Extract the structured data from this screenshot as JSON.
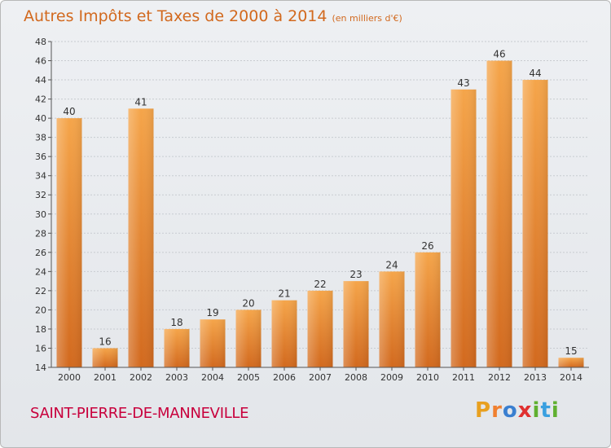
{
  "title": "Autres Impôts et Taxes de 2000 à 2014",
  "unit": "(en milliers d'€)",
  "commune": "SAINT-PIERRE-DE-MANNEVILLE",
  "logo": "Proxiti",
  "colors": {
    "bar_top": "#f5a54a",
    "bar_bottom": "#d2691e",
    "title": "#d2691e",
    "commune": "#c8003c"
  },
  "chart_data": {
    "type": "bar",
    "title": "Autres Impôts et Taxes de 2000 à 2014",
    "subtitle": "(en milliers d'€)",
    "categories": [
      "2000",
      "2001",
      "2002",
      "2003",
      "2004",
      "2005",
      "2006",
      "2007",
      "2008",
      "2009",
      "2010",
      "2011",
      "2012",
      "2013",
      "2014"
    ],
    "values": [
      40,
      16,
      41,
      18,
      19,
      20,
      21,
      22,
      23,
      24,
      26,
      43,
      46,
      44,
      15
    ],
    "ylim": [
      14,
      48
    ],
    "yticks": [
      14,
      16,
      18,
      20,
      22,
      24,
      26,
      28,
      30,
      32,
      34,
      36,
      38,
      40,
      42,
      44,
      46,
      48
    ],
    "grid": true,
    "data_labels": true
  }
}
